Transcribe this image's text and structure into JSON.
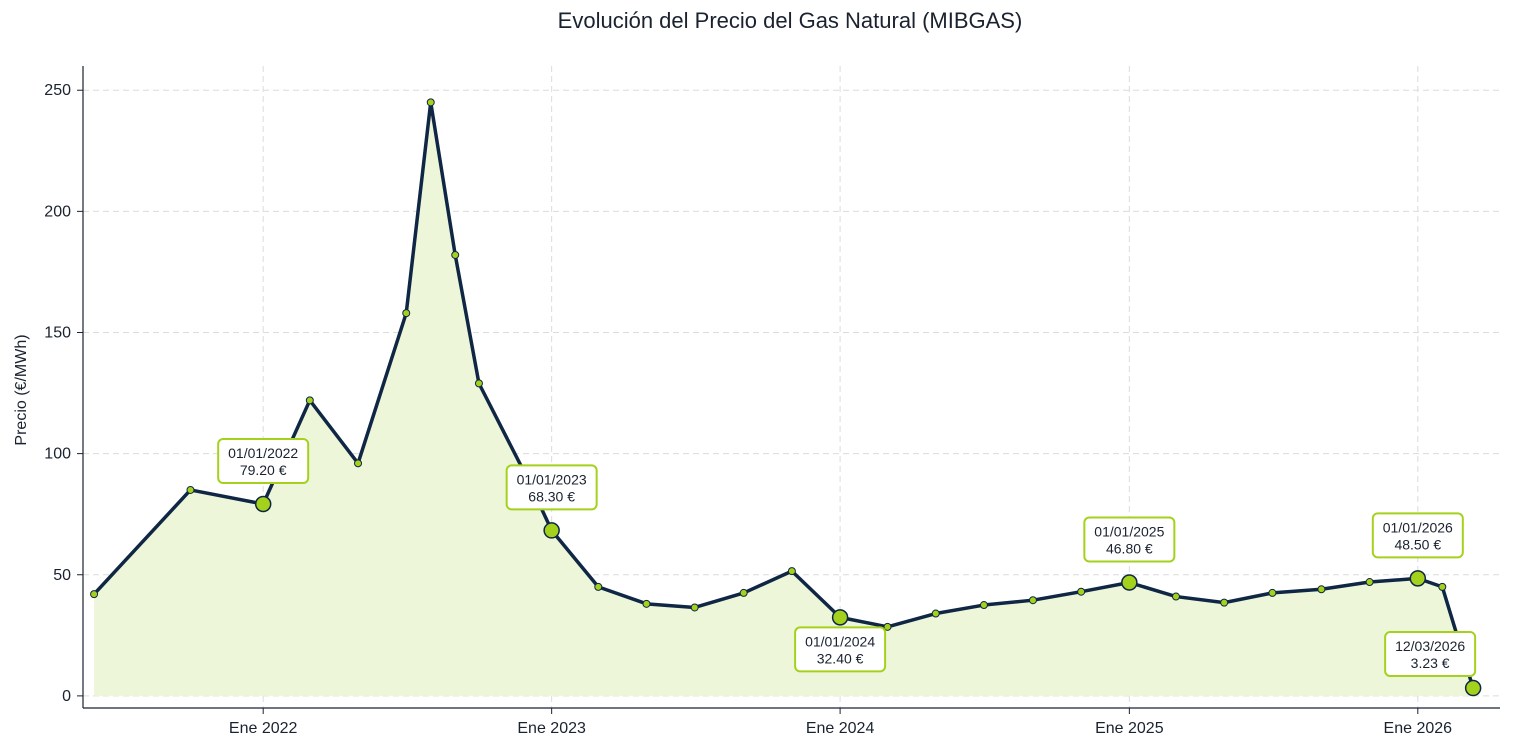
{
  "chart_data": {
    "type": "area",
    "title": "Evolución del Precio del Gas Natural (MIBGAS)",
    "xlabel": "",
    "ylabel": "Precio (€/MWh)",
    "ylim": [
      -5,
      260
    ],
    "grid": true,
    "xlim": [
      "2021-05-18",
      "2026-04-15"
    ],
    "x_ticks": [
      {
        "date": "2022-01-01",
        "label": "Ene 2022"
      },
      {
        "date": "2023-01-01",
        "label": "Ene 2023"
      },
      {
        "date": "2024-01-01",
        "label": "Ene 2024"
      },
      {
        "date": "2025-01-01",
        "label": "Ene 2025"
      },
      {
        "date": "2026-01-01",
        "label": "Ene 2026"
      }
    ],
    "y_ticks": [
      0,
      50,
      100,
      150,
      200,
      250
    ],
    "series": [
      {
        "line_color": "#0f2744",
        "marker_color": "#a4d21c",
        "fill_color": "#eef6d9",
        "x": [
          "2021-06-01",
          "2021-10-01",
          "2022-01-01",
          "2022-03-01",
          "2022-05-01",
          "2022-07-01",
          "2022-08-01",
          "2022-09-01",
          "2022-10-01",
          "2022-12-01",
          "2023-01-01",
          "2023-03-01",
          "2023-05-01",
          "2023-07-01",
          "2023-09-01",
          "2023-11-01",
          "2024-01-01",
          "2024-03-01",
          "2024-05-01",
          "2024-07-01",
          "2024-09-01",
          "2024-11-01",
          "2025-01-01",
          "2025-03-01",
          "2025-05-01",
          "2025-07-01",
          "2025-09-01",
          "2025-11-01",
          "2026-01-01",
          "2026-02-01",
          "2026-03-12"
        ],
        "y": [
          42,
          85,
          79.2,
          122,
          96,
          158,
          245,
          182,
          129,
          90,
          68.3,
          45,
          38,
          36.5,
          42.5,
          51.5,
          32.4,
          28.5,
          34,
          37.5,
          39.5,
          43,
          46.8,
          41,
          38.5,
          42.5,
          44,
          47,
          48.5,
          45,
          3.23
        ]
      }
    ],
    "annotations": [
      {
        "date": "2022-01-01",
        "value": 79.2,
        "date_label": "01/01/2022",
        "value_label": "79.20 €",
        "position": "above"
      },
      {
        "date": "2023-01-01",
        "value": 68.3,
        "date_label": "01/01/2023",
        "value_label": "68.30 €",
        "position": "above"
      },
      {
        "date": "2024-01-01",
        "value": 32.4,
        "date_label": "01/01/2024",
        "value_label": "32.40 €",
        "position": "below"
      },
      {
        "date": "2025-01-01",
        "value": 46.8,
        "date_label": "01/01/2025",
        "value_label": "46.80 €",
        "position": "above"
      },
      {
        "date": "2026-01-01",
        "value": 48.5,
        "date_label": "01/01/2026",
        "value_label": "48.50 €",
        "position": "above"
      },
      {
        "date": "2026-03-12",
        "value": 3.23,
        "date_label": "12/03/2026",
        "value_label": "3.23 €",
        "position": "left"
      }
    ]
  }
}
